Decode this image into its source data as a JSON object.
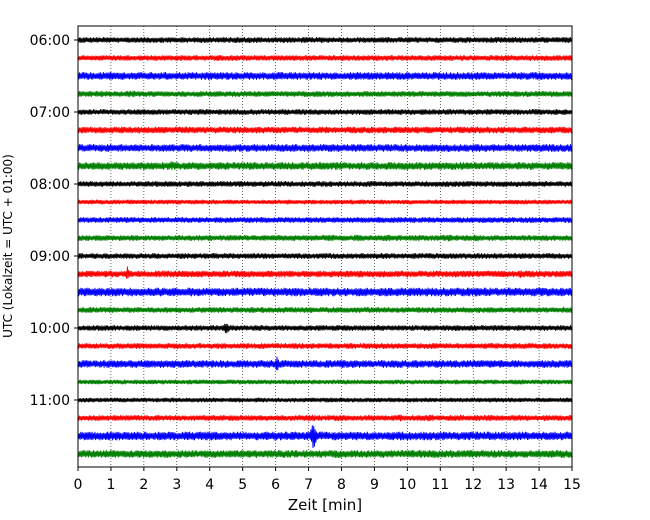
{
  "chart_data": {
    "type": "line",
    "subtype": "helicorder",
    "xlabel": "Zeit  [min]",
    "ylabel": "UTC (Lokalzeit = UTC + 01:00)",
    "xlim": [
      0,
      15
    ],
    "x_ticks": [
      "0",
      "1",
      "2",
      "3",
      "4",
      "5",
      "6",
      "7",
      "8",
      "9",
      "10",
      "11",
      "12",
      "13",
      "14",
      "15"
    ],
    "y_tick_labels": [
      "06:00",
      "07:00",
      "08:00",
      "09:00",
      "10:00",
      "11:00"
    ],
    "grid": "vertical dotted",
    "trace_interval_min": 15,
    "trace_colors": [
      "#000000",
      "#ff0000",
      "#0000ff",
      "#008000"
    ],
    "traces": [
      {
        "time": "06:00",
        "color": "#000000",
        "base": 2.5,
        "bursts": []
      },
      {
        "time": "06:15",
        "color": "#ff0000",
        "base": 2.5,
        "bursts": []
      },
      {
        "time": "06:30",
        "color": "#0000ff",
        "base": 3.5,
        "bursts": [
          [
            2.8,
            14.0,
            2.5
          ],
          [
            13.5,
            15.0,
            2.5
          ]
        ]
      },
      {
        "time": "06:45",
        "color": "#008000",
        "base": 2.5,
        "bursts": [
          [
            0.0,
            1.8,
            3.0
          ]
        ]
      },
      {
        "time": "07:00",
        "color": "#000000",
        "base": 2.5,
        "bursts": []
      },
      {
        "time": "07:15",
        "color": "#ff0000",
        "base": 3.0,
        "bursts": [
          [
            7.8,
            10.2,
            2.5
          ],
          [
            10.5,
            15.0,
            3.0
          ]
        ]
      },
      {
        "time": "07:30",
        "color": "#0000ff",
        "base": 3.5,
        "bursts": []
      },
      {
        "time": "07:45",
        "color": "#008000",
        "base": 3.5,
        "bursts": [
          [
            2.8,
            2.9,
            6.0
          ],
          [
            4.0,
            12.3,
            1.5
          ]
        ]
      },
      {
        "time": "08:00",
        "color": "#000000",
        "base": 2.5,
        "bursts": [
          [
            1.1,
            1.4,
            2.0
          ]
        ]
      },
      {
        "time": "08:15",
        "color": "#ff0000",
        "base": 2.0,
        "bursts": []
      },
      {
        "time": "08:30",
        "color": "#0000ff",
        "base": 2.5,
        "bursts": []
      },
      {
        "time": "08:45",
        "color": "#008000",
        "base": 2.5,
        "bursts": [
          [
            7.0,
            12.5,
            3.0
          ]
        ]
      },
      {
        "time": "09:00",
        "color": "#000000",
        "base": 2.5,
        "bursts": [
          [
            7.0,
            15.0,
            2.5
          ]
        ]
      },
      {
        "time": "09:15",
        "color": "#ff0000",
        "base": 3.0,
        "bursts": [
          [
            1.45,
            1.55,
            8.0
          ],
          [
            9.0,
            15.0,
            2.0
          ],
          [
            13.4,
            13.5,
            5.0
          ]
        ]
      },
      {
        "time": "09:30",
        "color": "#0000ff",
        "base": 4.0,
        "bursts": [
          [
            0.0,
            6.0,
            1.5
          ]
        ]
      },
      {
        "time": "09:45",
        "color": "#008000",
        "base": 2.5,
        "bursts": [
          [
            5.5,
            10.5,
            2.5
          ]
        ]
      },
      {
        "time": "10:00",
        "color": "#000000",
        "base": 2.5,
        "bursts": [
          [
            4.4,
            4.6,
            6.0
          ]
        ]
      },
      {
        "time": "10:15",
        "color": "#ff0000",
        "base": 2.5,
        "bursts": [
          [
            1.3,
            15.0,
            2.0
          ]
        ]
      },
      {
        "time": "10:30",
        "color": "#0000ff",
        "base": 3.5,
        "bursts": [
          [
            6.0,
            6.1,
            9.0
          ]
        ]
      },
      {
        "time": "10:45",
        "color": "#008000",
        "base": 2.0,
        "bursts": []
      },
      {
        "time": "11:00",
        "color": "#000000",
        "base": 2.0,
        "bursts": []
      },
      {
        "time": "11:15",
        "color": "#ff0000",
        "base": 2.5,
        "bursts": [
          [
            7.0,
            15.0,
            3.0
          ]
        ]
      },
      {
        "time": "11:30",
        "color": "#0000ff",
        "base": 4.0,
        "bursts": [
          [
            7.05,
            7.25,
            14.0
          ],
          [
            14.2,
            14.4,
            5.0
          ]
        ]
      },
      {
        "time": "11:45",
        "color": "#008000",
        "base": 3.5,
        "bursts": []
      }
    ]
  }
}
